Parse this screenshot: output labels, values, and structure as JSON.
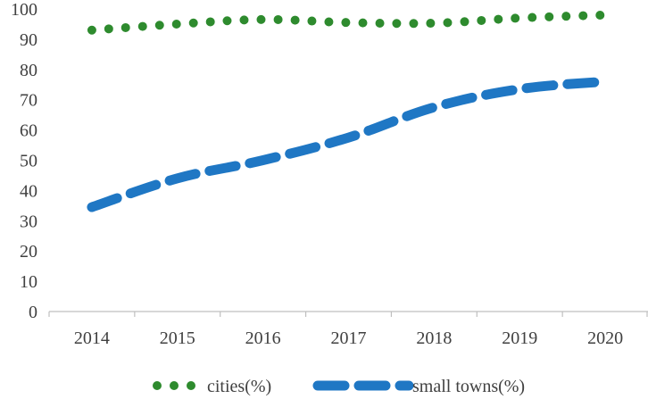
{
  "chart_data": {
    "type": "line",
    "title": "",
    "xlabel": "",
    "ylabel": "",
    "categories": [
      "2014",
      "2015",
      "2016",
      "2017",
      "2018",
      "2019",
      "2020"
    ],
    "ylim": [
      0,
      100
    ],
    "yticks": [
      "0",
      "10",
      "20",
      "30",
      "40",
      "50",
      "60",
      "70",
      "80",
      "90",
      "100"
    ],
    "grid": false,
    "legend_position": "bottom",
    "series": [
      {
        "name": "cities(%)",
        "values": [
          93,
          95,
          96.5,
          95.5,
          95.3,
          97,
          98
        ],
        "color": "#2e8b2e",
        "style": "dotted"
      },
      {
        "name": "small towns(%)",
        "values": [
          34.5,
          44,
          50,
          57.5,
          67.5,
          73.5,
          76
        ],
        "color": "#1f77c4",
        "style": "dashed"
      }
    ]
  }
}
